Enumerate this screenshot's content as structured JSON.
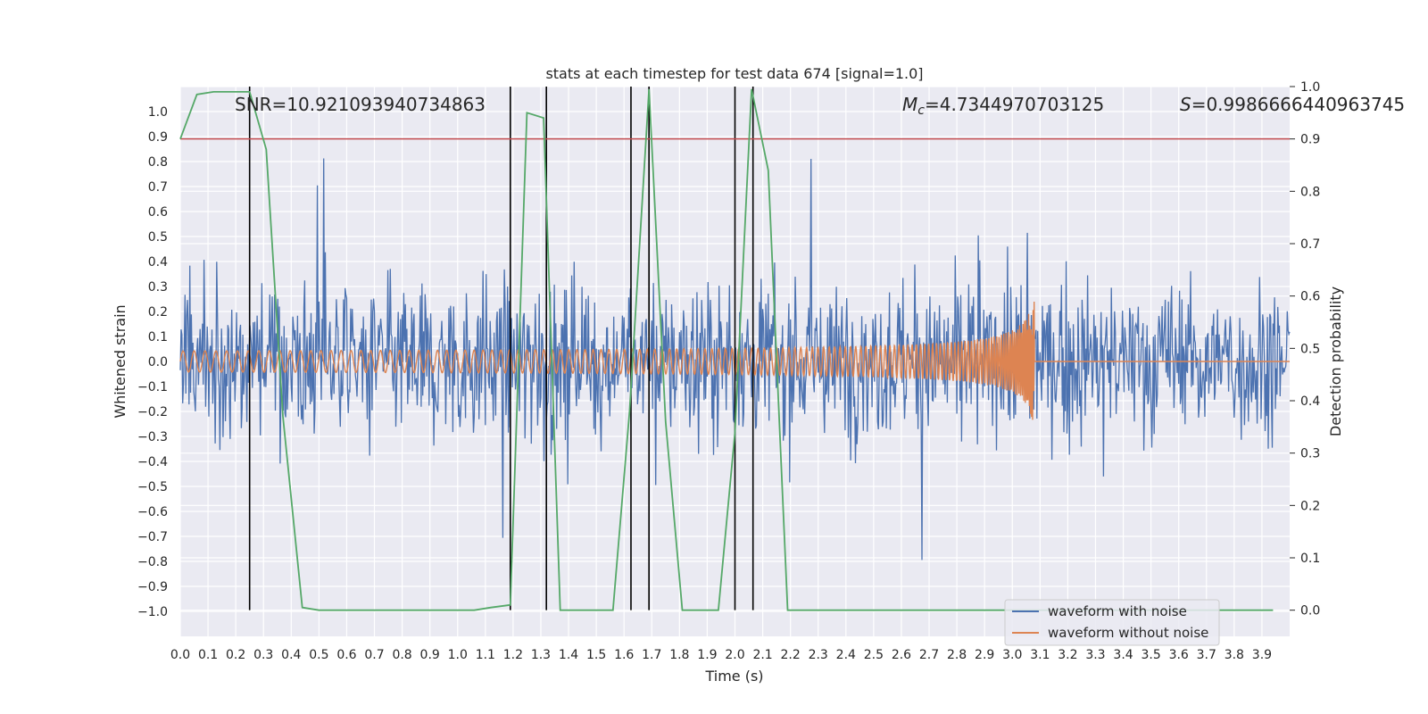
{
  "chart_data": {
    "type": "line",
    "title": "stats at each timestep for test data 674 [signal=1.0]",
    "xlabel": "Time (s)",
    "ylabel": "Whitened strain",
    "y2label": "Detection probability",
    "xlim": [
      0.0,
      4.0
    ],
    "ylim": [
      -1.1,
      1.1
    ],
    "y2lim": [
      -0.05,
      1.0
    ],
    "x_ticks": [
      0.0,
      0.1,
      0.2,
      0.3,
      0.4,
      0.5,
      0.6,
      0.7,
      0.8,
      0.9,
      1.0,
      1.1,
      1.2,
      1.3,
      1.4,
      1.5,
      1.6,
      1.7,
      1.8,
      1.9,
      2.0,
      2.1,
      2.2,
      2.3,
      2.4,
      2.5,
      2.6,
      2.7,
      2.8,
      2.9,
      3.0,
      3.1,
      3.2,
      3.3,
      3.4,
      3.5,
      3.6,
      3.7,
      3.8,
      3.9
    ],
    "x_tick_labels": [
      "0.0",
      "0.1",
      "0.2",
      "0.3",
      "0.4",
      "0.5",
      "0.6",
      "0.7",
      "0.8",
      "0.9",
      "1.0",
      "1.1",
      "1.2",
      "1.3",
      "1.4",
      "1.5",
      "1.6",
      "1.7",
      "1.8",
      "1.9",
      "2.0",
      "2.1",
      "2.2",
      "2.3",
      "2.4",
      "2.5",
      "2.6",
      "2.7",
      "2.8",
      "2.9",
      "3.0",
      "3.1",
      "3.2",
      "3.3",
      "3.4",
      "3.5",
      "3.6",
      "3.7",
      "3.8",
      "3.9"
    ],
    "y_ticks": [
      1.0,
      0.9,
      0.8,
      0.7,
      0.6,
      0.5,
      0.4,
      0.3,
      0.2,
      0.1,
      0.0,
      -0.1,
      -0.2,
      -0.3,
      -0.4,
      -0.5,
      -0.6,
      -0.7,
      -0.8,
      -0.9,
      -1.0
    ],
    "y_tick_labels": [
      "1.0",
      "0.9",
      "0.8",
      "0.7",
      "0.6",
      "0.5",
      "0.4",
      "0.3",
      "0.2",
      "0.1",
      "0.0",
      "−0.1",
      "−0.2",
      "−0.3",
      "−0.4",
      "−0.5",
      "−0.6",
      "−0.7",
      "−0.8",
      "−0.9",
      "−1.0"
    ],
    "y2_ticks": [
      1.0,
      0.9,
      0.8,
      0.7,
      0.6,
      0.5,
      0.4,
      0.3,
      0.2,
      0.1,
      0.0
    ],
    "y2_tick_labels": [
      "1.0",
      "0.9",
      "0.8",
      "0.7",
      "0.6",
      "0.5",
      "0.4",
      "0.3",
      "0.2",
      "0.1",
      "0.0"
    ],
    "annotations": {
      "snr": "SNR=10.921093940734863",
      "mc_symbol": "M",
      "mc_subscript": "c",
      "mc_value": "=4.7344970703125",
      "s_symbol": "S",
      "s_value": "=0.9986666440963745"
    },
    "threshold_y2": 0.9,
    "event_lines_x": [
      0.25,
      1.19,
      1.32,
      1.625,
      1.69,
      2.0,
      2.065
    ],
    "series": [
      {
        "name": "waveform with noise",
        "color": "#4c72b0",
        "style": "noise, roughly uniform amplitude ~0.3 with spikes to ±0.9, across 0–4 s",
        "amplitude": 0.3
      },
      {
        "name": "waveform without noise",
        "color": "#dd8452",
        "style": "chirp, amplitude grows from ~0.03 to ~0.28 up to merger at 3.08 s, then zero",
        "start_amplitude": 0.03,
        "peak_amplitude": 0.28,
        "merger_time": 3.08
      },
      {
        "name": "detection probability",
        "axis": "y2",
        "color": "#55a868",
        "x": [
          0.0,
          0.06,
          0.12,
          0.18,
          0.25,
          0.31,
          0.37,
          0.44,
          0.5,
          0.56,
          0.62,
          0.68,
          0.75,
          0.81,
          0.87,
          0.93,
          1.0,
          1.06,
          1.12,
          1.19,
          1.25,
          1.31,
          1.37,
          1.44,
          1.5,
          1.56,
          1.62,
          1.69,
          1.75,
          1.81,
          1.87,
          1.94,
          2.0,
          2.06,
          2.12,
          2.19,
          2.25,
          2.31,
          2.37,
          2.44,
          2.5,
          2.56,
          2.62,
          2.69,
          2.75,
          2.81,
          2.87,
          2.94,
          3.0,
          3.06,
          3.12,
          3.19,
          3.25,
          3.31,
          3.37,
          3.44,
          3.5,
          3.56,
          3.62,
          3.69,
          3.75,
          3.81,
          3.87,
          3.94
        ],
        "y": [
          0.9,
          0.985,
          0.99,
          0.99,
          0.99,
          0.88,
          0.37,
          0.005,
          0.0,
          0.0,
          0.0,
          0.0,
          0.0,
          0.0,
          0.0,
          0.0,
          0.0,
          0.0,
          0.005,
          0.01,
          0.95,
          0.94,
          0.0,
          0.0,
          0.0,
          0.0,
          0.38,
          0.995,
          0.36,
          0.0,
          0.0,
          0.0,
          0.34,
          0.995,
          0.84,
          0.0,
          0.0,
          0.0,
          0.0,
          0.0,
          0.0,
          0.0,
          0.0,
          0.0,
          0.0,
          0.0,
          0.0,
          0.0,
          0.0,
          0.0,
          0.0,
          0.0,
          0.0,
          0.0,
          0.0,
          0.0,
          0.0,
          0.0,
          0.0,
          0.0,
          0.0,
          0.0,
          0.0,
          0.0
        ]
      }
    ],
    "legend": {
      "position": "lower-right",
      "entries": [
        {
          "label": "waveform with noise",
          "color": "#4c72b0"
        },
        {
          "label": "waveform without noise",
          "color": "#dd8452"
        }
      ]
    }
  }
}
